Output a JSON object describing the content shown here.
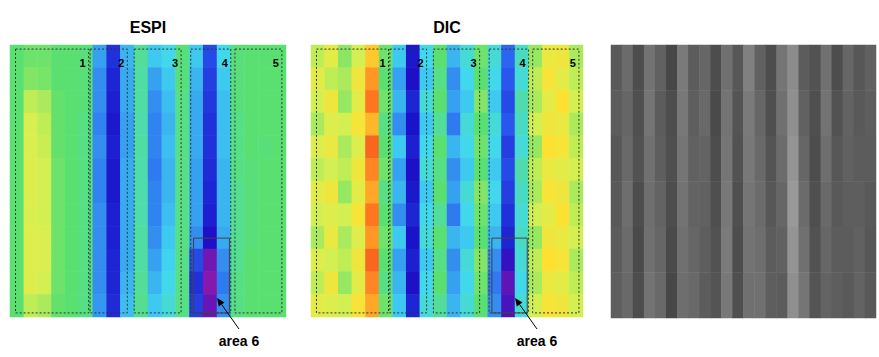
{
  "chart_data": [
    {
      "type": "heatmap",
      "title": "ESPI",
      "color": "jet",
      "color_range": [
        0,
        1
      ],
      "tick_labels": false,
      "areas": [
        "1",
        "2",
        "3",
        "4",
        "5"
      ],
      "annotation": "area 6",
      "cells": [
        [
          0.5,
          0.52,
          0.52,
          0.5,
          0.5,
          0.49,
          0.32,
          0.18,
          0.34,
          0.46,
          0.36,
          0.38,
          0.49,
          0.36,
          0.22,
          0.38,
          0.49,
          0.5,
          0.5,
          0.5
        ],
        [
          0.5,
          0.54,
          0.53,
          0.5,
          0.5,
          0.49,
          0.3,
          0.16,
          0.33,
          0.45,
          0.32,
          0.36,
          0.49,
          0.34,
          0.2,
          0.36,
          0.49,
          0.5,
          0.5,
          0.5
        ],
        [
          0.5,
          0.6,
          0.58,
          0.51,
          0.5,
          0.49,
          0.3,
          0.15,
          0.33,
          0.45,
          0.3,
          0.35,
          0.48,
          0.33,
          0.19,
          0.35,
          0.49,
          0.5,
          0.5,
          0.5
        ],
        [
          0.5,
          0.63,
          0.6,
          0.51,
          0.5,
          0.48,
          0.29,
          0.14,
          0.32,
          0.44,
          0.29,
          0.34,
          0.48,
          0.33,
          0.18,
          0.35,
          0.48,
          0.5,
          0.5,
          0.5
        ],
        [
          0.5,
          0.63,
          0.61,
          0.51,
          0.5,
          0.48,
          0.3,
          0.15,
          0.32,
          0.45,
          0.29,
          0.35,
          0.48,
          0.33,
          0.18,
          0.35,
          0.48,
          0.5,
          0.49,
          0.5
        ],
        [
          0.5,
          0.64,
          0.62,
          0.52,
          0.5,
          0.48,
          0.29,
          0.14,
          0.33,
          0.44,
          0.28,
          0.34,
          0.48,
          0.32,
          0.17,
          0.34,
          0.48,
          0.49,
          0.5,
          0.5
        ],
        [
          0.5,
          0.64,
          0.62,
          0.52,
          0.5,
          0.48,
          0.29,
          0.14,
          0.33,
          0.44,
          0.29,
          0.34,
          0.48,
          0.32,
          0.16,
          0.34,
          0.47,
          0.49,
          0.5,
          0.5
        ],
        [
          0.5,
          0.63,
          0.62,
          0.52,
          0.5,
          0.48,
          0.3,
          0.15,
          0.33,
          0.44,
          0.29,
          0.35,
          0.48,
          0.32,
          0.15,
          0.34,
          0.47,
          0.49,
          0.5,
          0.5
        ],
        [
          0.5,
          0.64,
          0.63,
          0.52,
          0.5,
          0.48,
          0.3,
          0.15,
          0.33,
          0.45,
          0.3,
          0.36,
          0.48,
          0.3,
          0.12,
          0.33,
          0.47,
          0.49,
          0.5,
          0.5
        ],
        [
          0.5,
          0.64,
          0.63,
          0.52,
          0.5,
          0.48,
          0.3,
          0.16,
          0.33,
          0.45,
          0.32,
          0.37,
          0.48,
          0.22,
          0.04,
          0.3,
          0.47,
          0.5,
          0.5,
          0.5
        ],
        [
          0.5,
          0.64,
          0.62,
          0.52,
          0.5,
          0.48,
          0.3,
          0.16,
          0.34,
          0.46,
          0.34,
          0.38,
          0.48,
          0.18,
          0.02,
          0.28,
          0.48,
          0.5,
          0.5,
          0.5
        ],
        [
          0.5,
          0.6,
          0.58,
          0.51,
          0.5,
          0.48,
          0.31,
          0.17,
          0.35,
          0.47,
          0.36,
          0.4,
          0.48,
          0.2,
          0.05,
          0.3,
          0.48,
          0.5,
          0.5,
          0.5
        ]
      ]
    },
    {
      "type": "heatmap",
      "title": "DIC",
      "color": "jet",
      "color_range": [
        0,
        1
      ],
      "tick_labels": false,
      "areas": [
        "1",
        "2",
        "3",
        "4",
        "5"
      ],
      "annotation": "area 6",
      "cells": [
        [
          0.6,
          0.66,
          0.55,
          0.62,
          0.78,
          0.52,
          0.36,
          0.14,
          0.38,
          0.5,
          0.34,
          0.4,
          0.52,
          0.4,
          0.26,
          0.42,
          0.56,
          0.68,
          0.7,
          0.58
        ],
        [
          0.66,
          0.6,
          0.58,
          0.7,
          0.84,
          0.5,
          0.32,
          0.12,
          0.36,
          0.48,
          0.3,
          0.38,
          0.5,
          0.38,
          0.24,
          0.4,
          0.6,
          0.72,
          0.66,
          0.6
        ],
        [
          0.62,
          0.7,
          0.56,
          0.66,
          0.88,
          0.52,
          0.34,
          0.16,
          0.4,
          0.5,
          0.32,
          0.36,
          0.54,
          0.36,
          0.22,
          0.44,
          0.58,
          0.66,
          0.74,
          0.62
        ],
        [
          0.58,
          0.64,
          0.62,
          0.72,
          0.8,
          0.48,
          0.3,
          0.13,
          0.36,
          0.46,
          0.28,
          0.4,
          0.5,
          0.4,
          0.24,
          0.42,
          0.62,
          0.7,
          0.68,
          0.58
        ],
        [
          0.64,
          0.68,
          0.58,
          0.64,
          0.9,
          0.5,
          0.36,
          0.15,
          0.38,
          0.5,
          0.34,
          0.38,
          0.52,
          0.38,
          0.2,
          0.4,
          0.56,
          0.74,
          0.72,
          0.6
        ],
        [
          0.6,
          0.62,
          0.6,
          0.7,
          0.86,
          0.52,
          0.32,
          0.12,
          0.4,
          0.48,
          0.3,
          0.36,
          0.5,
          0.36,
          0.22,
          0.44,
          0.6,
          0.68,
          0.66,
          0.62
        ],
        [
          0.66,
          0.7,
          0.56,
          0.66,
          0.82,
          0.48,
          0.34,
          0.14,
          0.36,
          0.5,
          0.32,
          0.4,
          0.54,
          0.38,
          0.2,
          0.42,
          0.58,
          0.72,
          0.7,
          0.58
        ],
        [
          0.62,
          0.64,
          0.62,
          0.72,
          0.88,
          0.5,
          0.3,
          0.16,
          0.38,
          0.46,
          0.28,
          0.38,
          0.52,
          0.36,
          0.18,
          0.4,
          0.62,
          0.66,
          0.74,
          0.6
        ],
        [
          0.58,
          0.68,
          0.58,
          0.64,
          0.84,
          0.52,
          0.36,
          0.13,
          0.4,
          0.5,
          0.34,
          0.36,
          0.5,
          0.34,
          0.16,
          0.42,
          0.56,
          0.7,
          0.68,
          0.62
        ],
        [
          0.64,
          0.62,
          0.6,
          0.7,
          0.9,
          0.5,
          0.32,
          0.15,
          0.36,
          0.48,
          0.3,
          0.4,
          0.54,
          0.3,
          0.1,
          0.4,
          0.6,
          0.74,
          0.72,
          0.58
        ],
        [
          0.6,
          0.7,
          0.56,
          0.66,
          0.86,
          0.48,
          0.34,
          0.12,
          0.38,
          0.5,
          0.32,
          0.38,
          0.52,
          0.28,
          0.06,
          0.38,
          0.58,
          0.68,
          0.66,
          0.6
        ],
        [
          0.66,
          0.64,
          0.62,
          0.72,
          0.82,
          0.52,
          0.36,
          0.16,
          0.4,
          0.46,
          0.34,
          0.4,
          0.5,
          0.3,
          0.08,
          0.4,
          0.62,
          0.72,
          0.7,
          0.62
        ]
      ]
    },
    {
      "type": "heatmap",
      "color": "gray",
      "color_range": [
        0,
        1
      ],
      "tick_labels": false,
      "cells": [
        [
          0.35,
          0.42,
          0.3,
          0.45,
          0.38,
          0.28,
          0.48,
          0.36,
          0.4,
          0.3,
          0.44,
          0.34,
          0.5,
          0.38,
          0.3,
          0.46,
          0.55,
          0.36,
          0.32,
          0.44,
          0.3,
          0.4,
          0.34,
          0.38
        ],
        [
          0.36,
          0.4,
          0.31,
          0.46,
          0.36,
          0.3,
          0.47,
          0.37,
          0.41,
          0.29,
          0.45,
          0.33,
          0.48,
          0.4,
          0.31,
          0.44,
          0.56,
          0.38,
          0.31,
          0.45,
          0.32,
          0.39,
          0.35,
          0.37
        ],
        [
          0.34,
          0.41,
          0.32,
          0.44,
          0.37,
          0.31,
          0.46,
          0.38,
          0.39,
          0.3,
          0.46,
          0.32,
          0.47,
          0.41,
          0.33,
          0.42,
          0.58,
          0.4,
          0.3,
          0.43,
          0.34,
          0.38,
          0.36,
          0.36
        ],
        [
          0.35,
          0.43,
          0.3,
          0.43,
          0.39,
          0.3,
          0.45,
          0.39,
          0.38,
          0.31,
          0.47,
          0.31,
          0.46,
          0.42,
          0.34,
          0.4,
          0.6,
          0.42,
          0.31,
          0.41,
          0.35,
          0.37,
          0.37,
          0.35
        ],
        [
          0.36,
          0.42,
          0.29,
          0.44,
          0.4,
          0.29,
          0.44,
          0.4,
          0.37,
          0.32,
          0.48,
          0.3,
          0.45,
          0.43,
          0.36,
          0.38,
          0.58,
          0.44,
          0.32,
          0.4,
          0.36,
          0.36,
          0.38,
          0.34
        ],
        [
          0.37,
          0.41,
          0.3,
          0.45,
          0.41,
          0.28,
          0.43,
          0.41,
          0.36,
          0.33,
          0.47,
          0.31,
          0.44,
          0.44,
          0.37,
          0.36,
          0.56,
          0.46,
          0.33,
          0.39,
          0.37,
          0.35,
          0.39,
          0.35
        ]
      ]
    }
  ]
}
